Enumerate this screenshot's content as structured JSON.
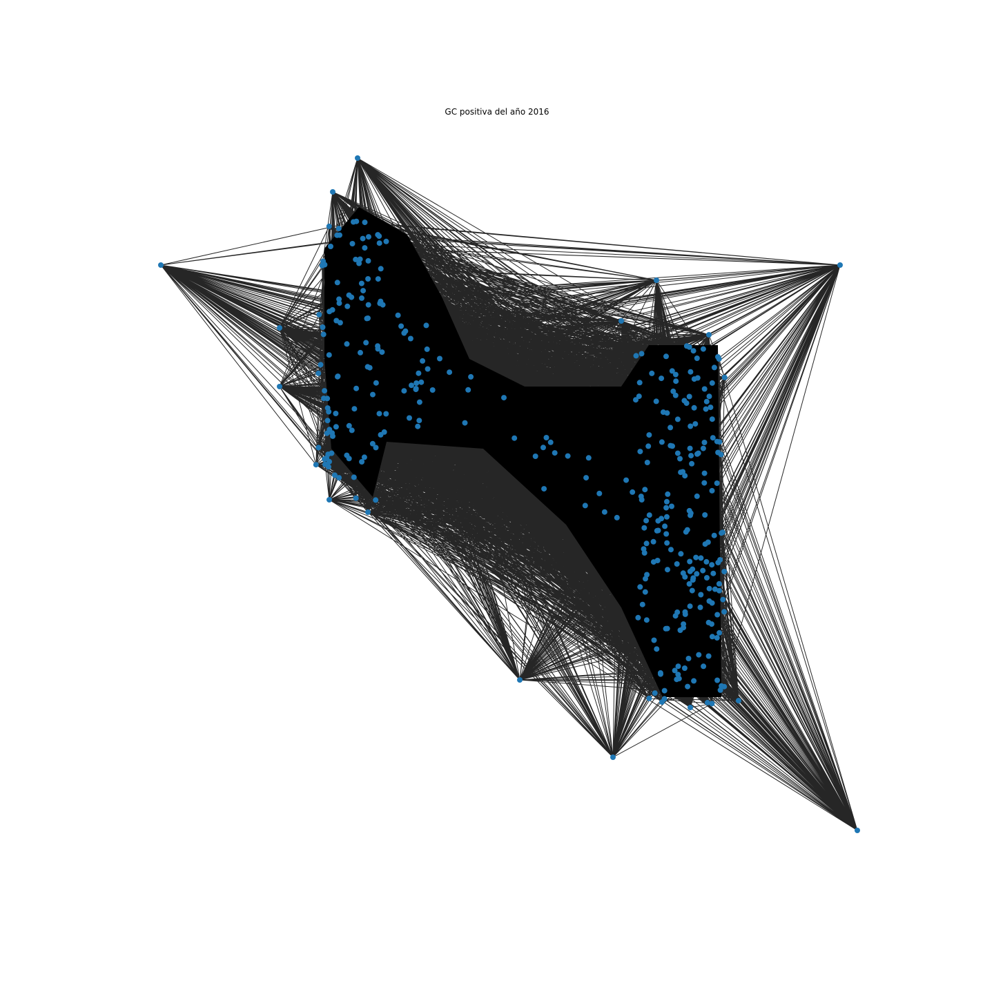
{
  "title": "GC positiva del año 2016",
  "chart_data": {
    "type": "network-graph",
    "title": "GC positiva del año 2016",
    "node_color": "#1f77b4",
    "edge_color": "#000000",
    "axes": "off",
    "grid": false
  }
}
